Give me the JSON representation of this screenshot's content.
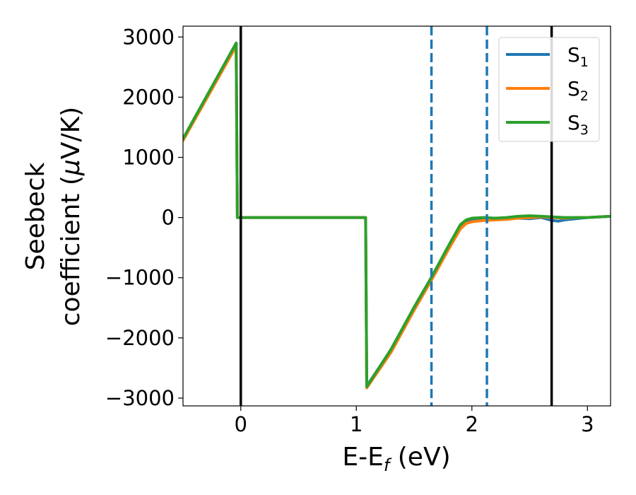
{
  "chart_data": {
    "type": "line",
    "title": "",
    "xlabel": "E-E",
    "xlabel_sub": "f",
    "xlabel_unit": " (eV)",
    "ylabel_line1": "Seebeck",
    "ylabel_line2_prefix": "coefficient  (",
    "ylabel_mu": "μ",
    "ylabel_line2_suffix": "V/K)",
    "xlim": [
      -0.5,
      3.2
    ],
    "ylim": [
      -3130,
      3180
    ],
    "xticks": [
      0,
      1,
      2,
      3
    ],
    "xtick_labels": [
      "0",
      "1",
      "2",
      "3"
    ],
    "yticks": [
      -3000,
      -2000,
      -1000,
      0,
      1000,
      2000,
      3000
    ],
    "ytick_labels": [
      "−3000",
      "−2000",
      "−1000",
      "0",
      "1000",
      "2000",
      "3000"
    ],
    "grid": false,
    "legend_position": "top-right",
    "vlines": [
      {
        "x": 0.0,
        "style": "solid",
        "color": "#000000"
      },
      {
        "x": 1.65,
        "style": "dashed",
        "color": "#1f77b4"
      },
      {
        "x": 2.13,
        "style": "dashed",
        "color": "#1f77b4"
      },
      {
        "x": 2.69,
        "style": "solid",
        "color": "#000000"
      }
    ],
    "series": [
      {
        "name": "S",
        "name_sub": "1",
        "color": "#1f77b4",
        "x": [
          -0.5,
          -0.04,
          -0.03,
          1.08,
          1.09,
          1.3,
          1.5,
          1.65,
          1.8,
          1.9,
          1.95,
          2.0,
          2.1,
          2.2,
          2.3,
          2.4,
          2.5,
          2.6,
          2.7,
          2.75,
          2.8,
          2.9,
          3.0,
          3.1,
          3.2
        ],
        "y": [
          1300,
          2880,
          0,
          0,
          -2800,
          -2200,
          -1500,
          -1000,
          -480,
          -150,
          -60,
          -30,
          -20,
          -30,
          -20,
          -10,
          -20,
          0,
          -50,
          -60,
          -40,
          -20,
          0,
          10,
          20
        ]
      },
      {
        "name": "S",
        "name_sub": "2",
        "color": "#ff7f0e",
        "x": [
          -0.5,
          -0.04,
          -0.03,
          1.08,
          1.09,
          1.3,
          1.5,
          1.65,
          1.8,
          1.9,
          1.95,
          2.0,
          2.1,
          2.2,
          2.3,
          2.4,
          2.5,
          2.6,
          2.7,
          2.8,
          2.9,
          3.0,
          3.1,
          3.2
        ],
        "y": [
          1280,
          2850,
          0,
          0,
          -2830,
          -2240,
          -1540,
          -1040,
          -520,
          -190,
          -100,
          -70,
          -50,
          -40,
          -30,
          -10,
          0,
          10,
          0,
          -10,
          0,
          0,
          10,
          20
        ]
      },
      {
        "name": "S",
        "name_sub": "3",
        "color": "#2ca02c",
        "x": [
          -0.5,
          -0.04,
          -0.03,
          1.08,
          1.09,
          1.3,
          1.5,
          1.65,
          1.8,
          1.9,
          1.95,
          2.0,
          2.1,
          2.2,
          2.3,
          2.4,
          2.5,
          2.6,
          2.7,
          2.8,
          2.9,
          3.0,
          3.1,
          3.2
        ],
        "y": [
          1310,
          2900,
          0,
          0,
          -2810,
          -2190,
          -1490,
          -990,
          -460,
          -120,
          -40,
          -10,
          0,
          -10,
          0,
          20,
          30,
          20,
          10,
          0,
          0,
          0,
          10,
          20
        ]
      }
    ]
  }
}
